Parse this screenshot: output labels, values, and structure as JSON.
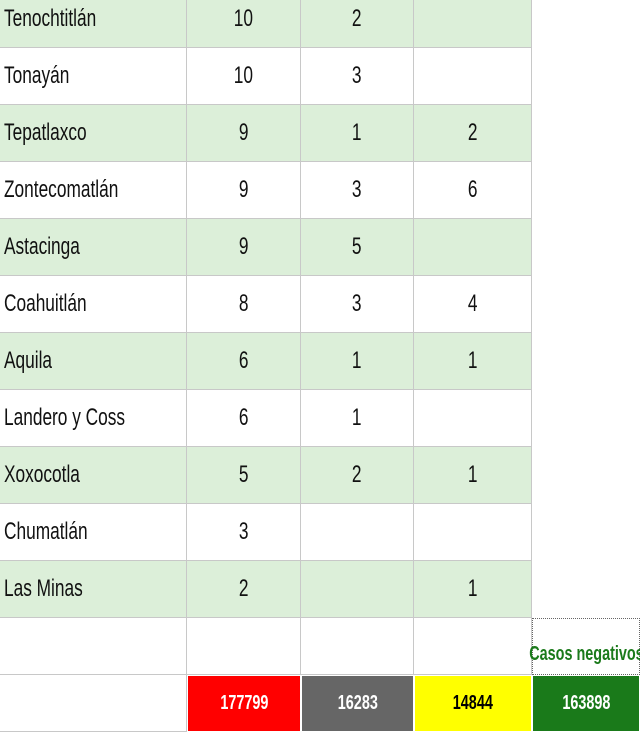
{
  "table": {
    "rows": [
      {
        "name": "Tenochtitlán",
        "values": [
          10,
          2,
          null
        ]
      },
      {
        "name": "Tonayán",
        "values": [
          10,
          3,
          null
        ]
      },
      {
        "name": "Tepatlaxco",
        "values": [
          9,
          1,
          2
        ]
      },
      {
        "name": "Zontecomatlán",
        "values": [
          9,
          3,
          6
        ]
      },
      {
        "name": "Astacinga",
        "values": [
          9,
          5,
          null
        ]
      },
      {
        "name": "Coahuitlán",
        "values": [
          8,
          3,
          4
        ]
      },
      {
        "name": "Aquila",
        "values": [
          6,
          1,
          1
        ]
      },
      {
        "name": "Landero y Coss",
        "values": [
          6,
          1,
          null
        ]
      },
      {
        "name": "Xoxocotla",
        "values": [
          5,
          2,
          1
        ]
      },
      {
        "name": "Chumatlán",
        "values": [
          3,
          null,
          null
        ]
      },
      {
        "name": "Las Minas",
        "values": [
          2,
          null,
          1
        ]
      }
    ],
    "negatives_label": "Casos negativos",
    "totals": [
      177799,
      16283,
      14844,
      163898
    ]
  }
}
